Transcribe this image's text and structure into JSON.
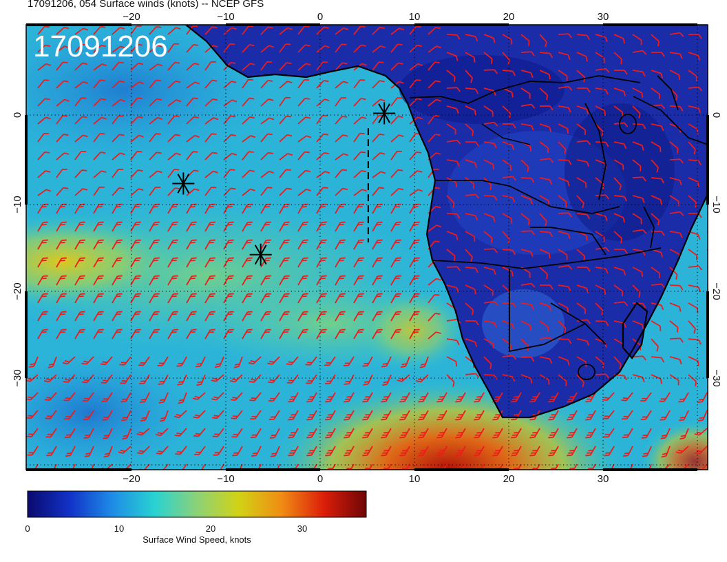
{
  "title": "17091206, 054 Surface winds (knots) -- NCEP GFS",
  "stamp": "17091206",
  "map": {
    "lon_range": [
      -31,
      41
    ],
    "lat_range": [
      -40,
      10
    ],
    "lon_ticks_top": [
      "−20",
      "−10",
      "0",
      "10",
      "20",
      "30"
    ],
    "lon_ticks_bottom": [
      "−20",
      "−10",
      "0",
      "10",
      "20",
      "30"
    ],
    "lat_ticks_left": [
      "0",
      "−10",
      "−20",
      "−30"
    ],
    "lat_ticks_right": [
      "0",
      "−10",
      "−20",
      "−30"
    ],
    "gridlines": true,
    "barb_color": "#ee1b1b",
    "markers": [
      {
        "name": "storm-marker-north",
        "lon": 6.8,
        "lat": 0.2
      },
      {
        "name": "storm-marker-west",
        "lon": -14.5,
        "lat": -7.8
      },
      {
        "name": "storm-marker-south",
        "lon": -6.3,
        "lat": -15.9
      }
    ],
    "dashed_line": {
      "lon": 5.1,
      "lat_from": -1.5,
      "lat_to": -14.5
    }
  },
  "colorbar": {
    "label": "Surface Wind Speed, knots",
    "ticks": [
      "0",
      "10",
      "20",
      "30"
    ],
    "tick_values": [
      0,
      10,
      20,
      30
    ],
    "range": [
      0,
      37
    ],
    "colors": [
      "#0a0a6e",
      "#1232c8",
      "#1e8ce6",
      "#28d2d2",
      "#8cd278",
      "#d2d214",
      "#f08c14",
      "#dc1e0a",
      "#6e0505"
    ]
  }
}
